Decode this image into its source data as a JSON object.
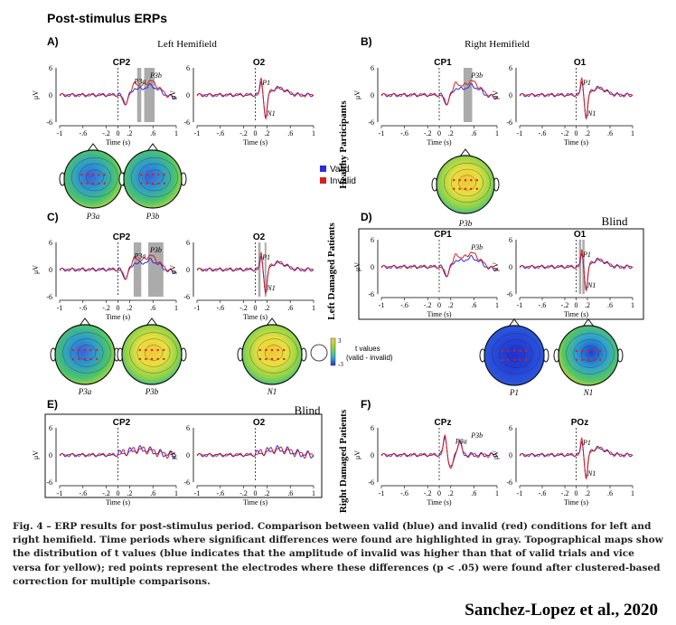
{
  "figure": {
    "title": "Post-stimulus ERPs",
    "colors": {
      "valid": "#2b2bd9",
      "invalid": "#d42020",
      "highlight": "#9c9c9c"
    },
    "ytick_labels": [
      "6",
      "0",
      "-6"
    ],
    "ylabel": "μV",
    "xtick_labels": [
      "-1",
      "-.6",
      "-.2",
      "0",
      ".2",
      ".6",
      "1"
    ],
    "xlabel": "Time (s)",
    "row_labels": [
      "Healthy Participants",
      "Left Damaged Patients",
      "Right Damaged Patients"
    ],
    "legend": {
      "valid": "Valid",
      "invalid": "Invalid"
    },
    "colorbar": {
      "max": "3",
      "min": "-3",
      "label1": "t values",
      "label2": "(valid - invalid)"
    },
    "panels": [
      {
        "letter": "A)",
        "title": "Left Hemifield",
        "plots": [
          {
            "electrode": "CP2",
            "highlights": [
              [
                0.33,
                0.4
              ],
              [
                0.45,
                0.63
              ]
            ],
            "comps": [
              "P3a",
              "P3b"
            ]
          },
          {
            "electrode": "O2",
            "highlights": [],
            "comps": [
              "P1",
              "N1"
            ]
          }
        ],
        "topos": [
          "P3a",
          "P3b"
        ]
      },
      {
        "letter": "B)",
        "title": "Right Hemifield",
        "plots": [
          {
            "electrode": "CP1",
            "highlights": [
              [
                0.42,
                0.57
              ]
            ],
            "comps": [
              "P3b"
            ]
          },
          {
            "electrode": "O1",
            "highlights": [],
            "comps": [
              "P1",
              "N1"
            ]
          }
        ],
        "topos": [
          "P3b"
        ]
      },
      {
        "letter": "C)",
        "title": "",
        "plots": [
          {
            "electrode": "CP2",
            "highlights": [
              [
                0.27,
                0.4
              ],
              [
                0.52,
                0.78
              ]
            ],
            "comps": [
              "P3a",
              "P3b"
            ]
          },
          {
            "electrode": "O2",
            "highlights": [
              [
                0.05,
                0.09
              ],
              [
                0.16,
                0.19
              ]
            ],
            "comps": [
              "P1",
              "N1"
            ]
          }
        ],
        "topos": [
          "P3a",
          "P3b",
          "N1"
        ]
      },
      {
        "letter": "D)",
        "title": "Blind",
        "plots": [
          {
            "electrode": "CP1",
            "highlights": [],
            "comps": [
              "P3b"
            ]
          },
          {
            "electrode": "O1",
            "highlights": [
              [
                0.05,
                0.09
              ],
              [
                0.11,
                0.15
              ]
            ],
            "comps": [
              "P1",
              "N1"
            ]
          }
        ],
        "topos": [
          "P1",
          "N1"
        ]
      },
      {
        "letter": "E)",
        "title": "Blind",
        "plots": [
          {
            "electrode": "CP2",
            "highlights": [],
            "comps": []
          },
          {
            "electrode": "O2",
            "highlights": [],
            "comps": []
          }
        ],
        "topos": []
      },
      {
        "letter": "F)",
        "title": "",
        "plots": [
          {
            "electrode": "CPz",
            "highlights": [],
            "comps": [
              "P3a",
              "P3b"
            ]
          },
          {
            "electrode": "POz",
            "highlights": [],
            "comps": [
              "P1",
              "N1"
            ]
          }
        ],
        "topos": []
      }
    ]
  },
  "caption": {
    "text": "Fig. 4 – ERP results for post-stimulus period. Comparison between valid (blue) and invalid (red) conditions for left and right hemifield. Time periods where significant differences were found are highlighted in gray. Topographical maps show the distribution of t values (blue indicates that the amplitude of invalid was higher than that of valid trials and vice versa for yellow); red points represent the electrodes where these differences (p < .05) were found after clustered-based correction for multiple comparisons."
  },
  "credit": "Sanchez-Lopez et al., 2020"
}
